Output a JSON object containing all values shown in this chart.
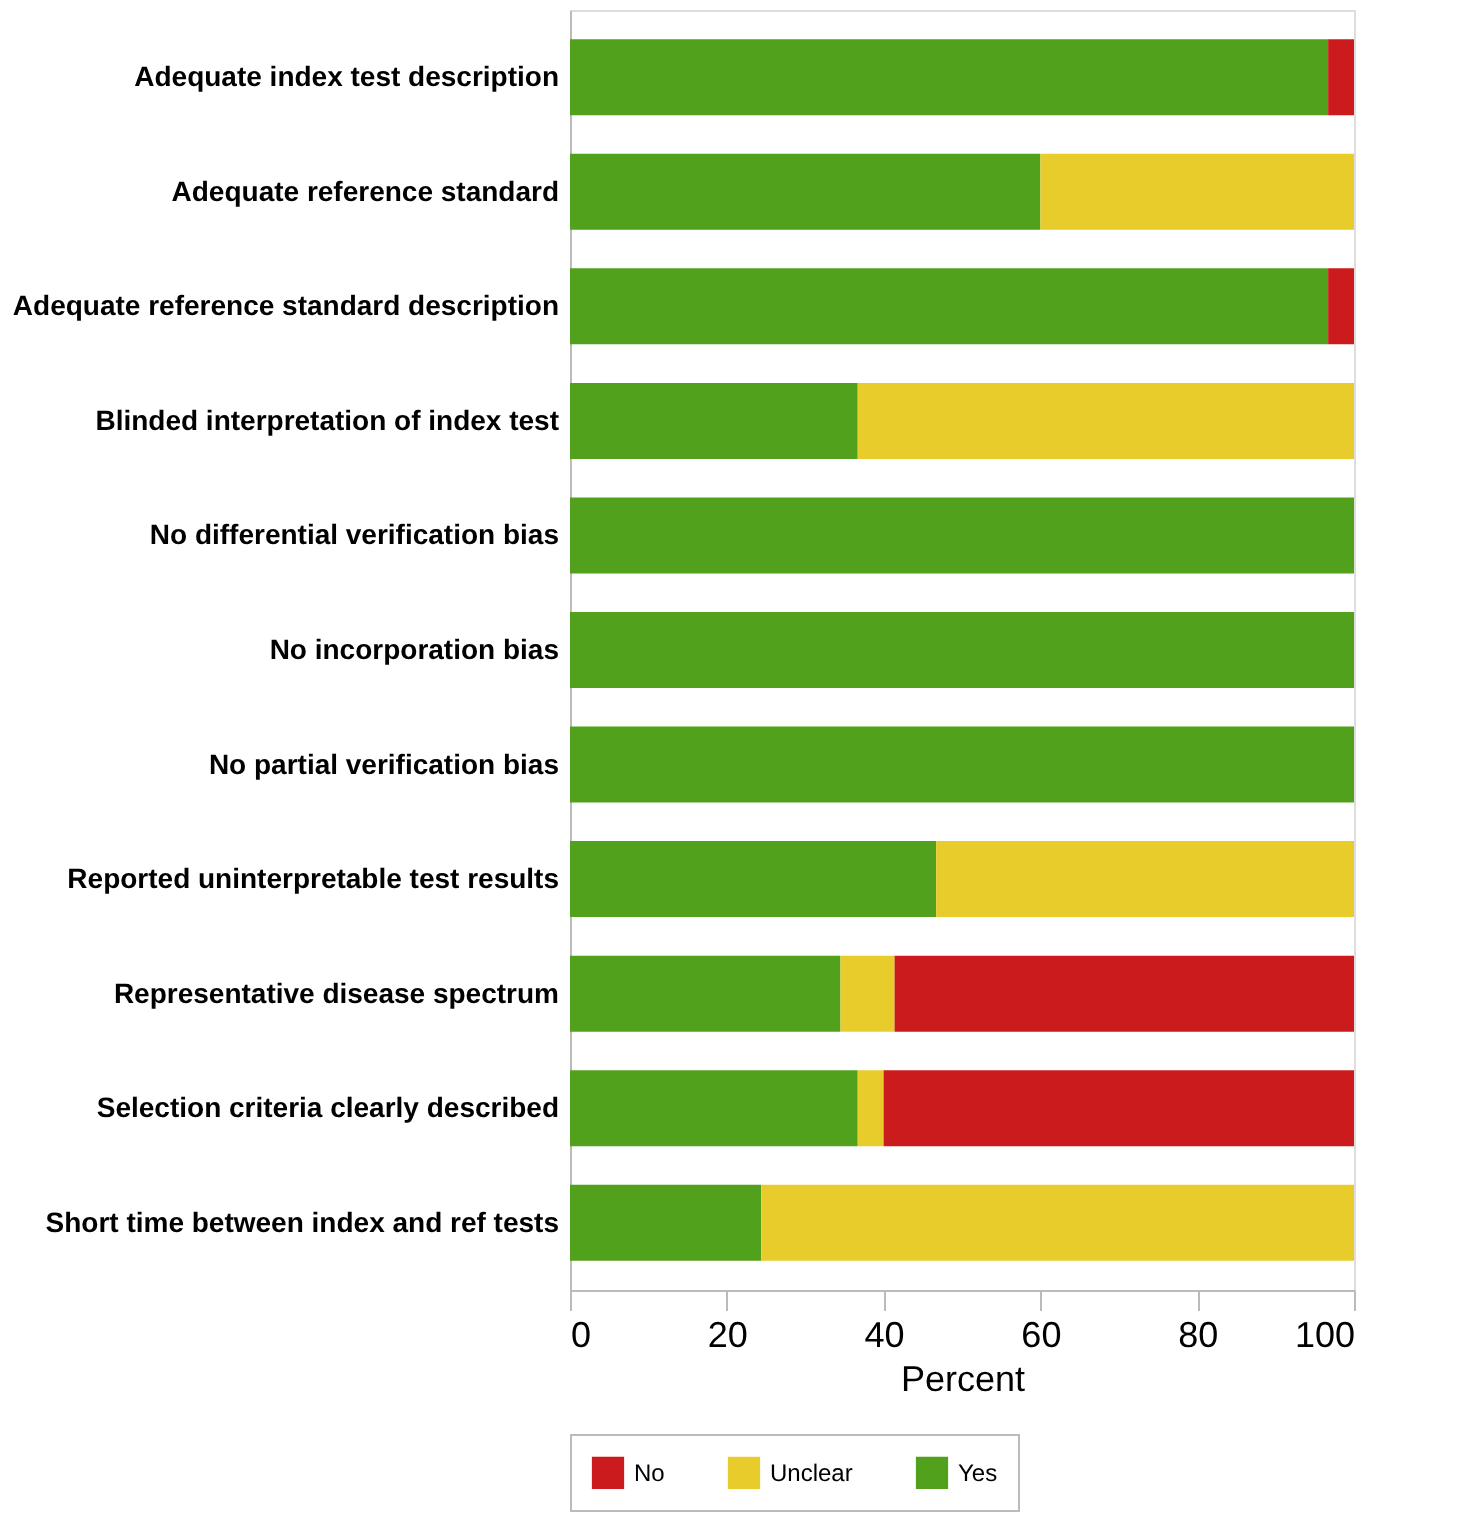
{
  "chart_data": {
    "type": "bar",
    "orientation": "horizontal",
    "stacked": true,
    "xlabel": "Percent",
    "categories": [
      "Adequate index test description",
      "Adequate reference standard",
      "Adequate reference standard description",
      "Blinded interpretation of index test",
      "No differential verification bias",
      "No incorporation bias",
      "No partial verification bias",
      "Reported uninterpretable test results",
      "Representative disease spectrum",
      "Selection criteria clearly described",
      "Short time between index and ref tests"
    ],
    "series": [
      {
        "name": "Yes",
        "color": "#52a11c",
        "values": [
          96.7,
          60,
          96.7,
          36.7,
          100,
          100,
          100,
          46.7,
          34.5,
          36.7,
          24.4
        ]
      },
      {
        "name": "Unclear",
        "color": "#e8cc2c",
        "values": [
          0,
          40,
          0,
          63.3,
          0,
          0,
          0,
          53.3,
          6.9,
          3.3,
          75.6
        ]
      },
      {
        "name": "No",
        "color": "#cc1b1d",
        "values": [
          3.3,
          0,
          3.3,
          0,
          0,
          0,
          0,
          0,
          58.6,
          60,
          0
        ]
      }
    ],
    "xlim": [
      0,
      100
    ],
    "xticks": [
      0,
      20,
      40,
      60,
      80,
      100
    ],
    "grid": false,
    "legend": "bottom"
  }
}
